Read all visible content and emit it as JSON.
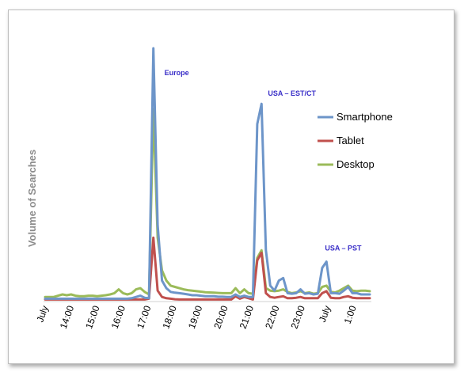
{
  "chart_data": {
    "type": "line",
    "ylabel": "Volume of Searches",
    "xlabel": "",
    "x_tick_labels": [
      "July",
      "14:00",
      "15:00",
      "16:00",
      "17:00",
      "18:00",
      "19:00",
      "20:00",
      "21:00",
      "22:00",
      "23:00",
      "July",
      "1:00"
    ],
    "ylim": [
      0,
      1000
    ],
    "grid": false,
    "legend_position": "right",
    "series": [
      {
        "name": "Smartphone",
        "color": "#6d95c9",
        "values": [
          8,
          8,
          8,
          8,
          8,
          8,
          8,
          8,
          8,
          8,
          8,
          8,
          8,
          8,
          8,
          8,
          8,
          8,
          8,
          8,
          10,
          15,
          20,
          12,
          10,
          1000,
          300,
          80,
          50,
          35,
          32,
          30,
          28,
          25,
          22,
          22,
          20,
          18,
          18,
          18,
          16,
          16,
          15,
          15,
          25,
          15,
          20,
          15,
          15,
          700,
          780,
          200,
          60,
          40,
          80,
          90,
          30,
          28,
          30,
          45,
          28,
          30,
          25,
          28,
          130,
          155,
          30,
          30,
          28,
          40,
          55,
          30,
          30,
          25,
          25,
          25
        ]
      },
      {
        "name": "Tablet",
        "color": "#c0504d",
        "values": [
          5,
          5,
          5,
          5,
          5,
          5,
          5,
          5,
          5,
          5,
          5,
          5,
          5,
          5,
          5,
          5,
          5,
          5,
          5,
          5,
          5,
          5,
          5,
          5,
          8,
          250,
          40,
          15,
          10,
          8,
          6,
          5,
          5,
          5,
          5,
          5,
          5,
          5,
          5,
          5,
          5,
          5,
          5,
          5,
          18,
          8,
          15,
          10,
          5,
          160,
          190,
          30,
          15,
          12,
          15,
          18,
          10,
          10,
          12,
          15,
          10,
          10,
          10,
          10,
          30,
          38,
          12,
          10,
          10,
          15,
          18,
          12,
          10,
          10,
          10,
          10
        ]
      },
      {
        "name": "Desktop",
        "color": "#9bbb59",
        "values": [
          15,
          15,
          15,
          20,
          25,
          22,
          25,
          20,
          18,
          18,
          20,
          20,
          18,
          20,
          22,
          25,
          30,
          45,
          30,
          25,
          30,
          45,
          50,
          35,
          25,
          760,
          250,
          120,
          80,
          60,
          55,
          50,
          45,
          42,
          40,
          38,
          36,
          34,
          33,
          32,
          31,
          30,
          30,
          30,
          50,
          30,
          45,
          30,
          28,
          170,
          200,
          50,
          40,
          38,
          40,
          45,
          35,
          30,
          33,
          38,
          30,
          33,
          28,
          30,
          55,
          60,
          35,
          33,
          40,
          50,
          60,
          40,
          38,
          40,
          40,
          38
        ]
      }
    ],
    "annotations": [
      {
        "text": "Europe",
        "x_index": 25,
        "y": 1000
      },
      {
        "text": "USA – EST/CT",
        "x_index": 50,
        "y": 780
      },
      {
        "text": "USA – PST",
        "x_index": 65,
        "y": 155
      }
    ]
  }
}
